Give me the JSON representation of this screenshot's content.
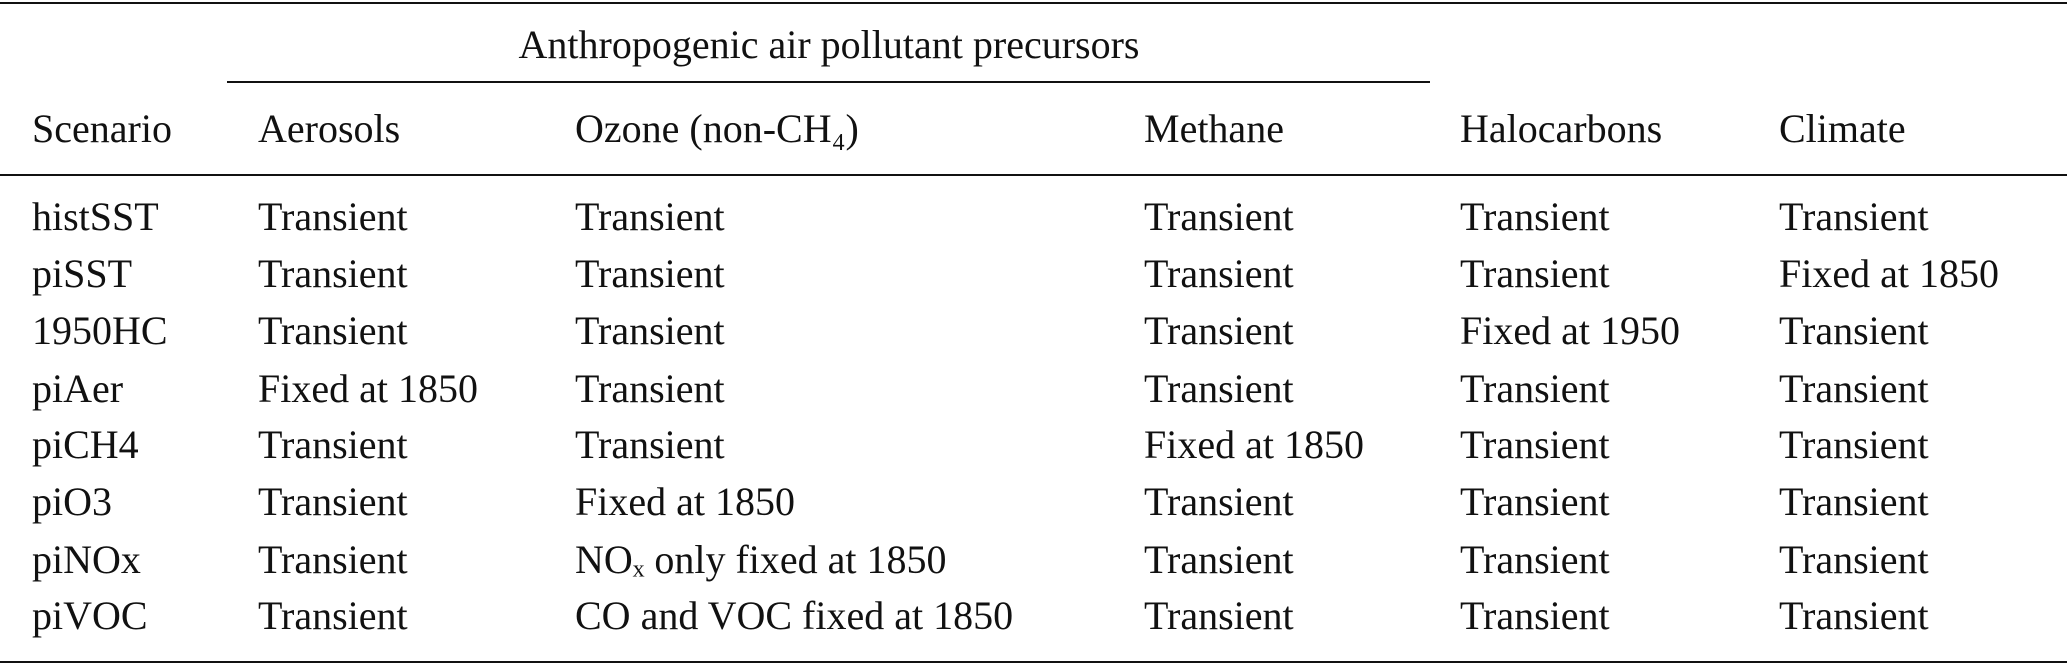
{
  "table": {
    "spanner": "Anthropogenic air pollutant precursors",
    "header": [
      "Scenario",
      "Aerosols",
      "Ozone (non-CH₄)",
      "Methane",
      "Halocarbons",
      "Climate"
    ],
    "rows": [
      [
        "histSST",
        "Transient",
        "Transient",
        "Transient",
        "Transient",
        "Transient"
      ],
      [
        "piSST",
        "Transient",
        "Transient",
        "Transient",
        "Transient",
        "Fixed at 1850"
      ],
      [
        "1950HC",
        "Transient",
        "Transient",
        "Transient",
        "Fixed at 1950",
        "Transient"
      ],
      [
        "piAer",
        "Fixed at 1850",
        "Transient",
        "Transient",
        "Transient",
        "Transient"
      ],
      [
        "piCH4",
        "Transient",
        "Transient",
        "Fixed at 1850",
        "Transient",
        "Transient"
      ],
      [
        "piO3",
        "Transient",
        "Fixed at 1850",
        "Transient",
        "Transient",
        "Transient"
      ],
      [
        "piNOx",
        "Transient",
        "NOₓ only fixed at 1850",
        "Transient",
        "Transient",
        "Transient"
      ],
      [
        "piVOC",
        "Transient",
        "CO and VOC fixed at 1850",
        "Transient",
        "Transient",
        "Transient"
      ]
    ]
  }
}
